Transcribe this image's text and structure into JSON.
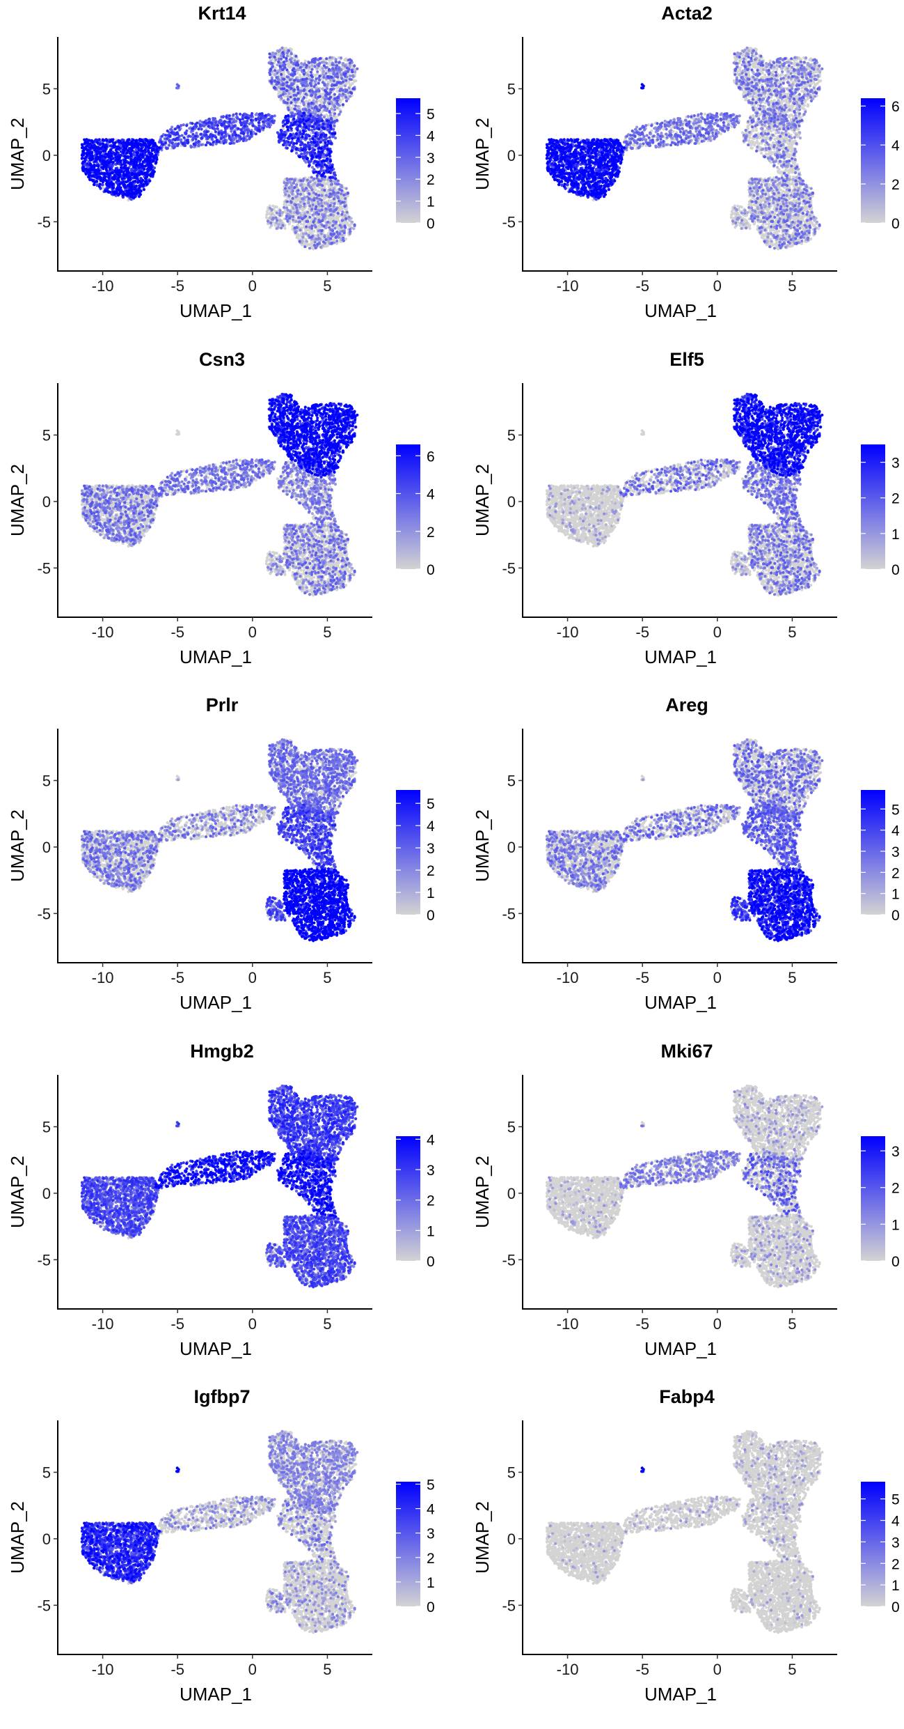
{
  "figure": {
    "layout": "5 rows x 2 columns of feature plots",
    "color_low": "#d3d3d3",
    "color_high": "#0000ff"
  },
  "chart_data": [
    {
      "type": "scatter",
      "title": "Krt14",
      "xlabel": "UMAP_1",
      "ylabel": "UMAP_2",
      "xlim": [
        -13,
        8
      ],
      "ylim": [
        -8.7,
        8.9
      ],
      "xticks": [
        -10,
        -5,
        0,
        5
      ],
      "yticks": [
        -5,
        0,
        5
      ],
      "legend": {
        "title": "",
        "placement": "right",
        "min": 0,
        "max": 5.7,
        "ticks": [
          0,
          1,
          2,
          3,
          4,
          5
        ]
      },
      "region_mean_expression": {
        "basal": 4.8,
        "bridge": 3.2,
        "luminal_top": 1.6,
        "stem": 3.8,
        "bottom": 1.2,
        "side_lobe": 0.8,
        "outlier": 2.5
      },
      "grid": false
    },
    {
      "type": "scatter",
      "title": "Acta2",
      "xlabel": "UMAP_1",
      "ylabel": "UMAP_2",
      "xlim": [
        -13,
        8
      ],
      "ylim": [
        -8.7,
        8.9
      ],
      "xticks": [
        -10,
        -5,
        0,
        5
      ],
      "yticks": [
        -5,
        0,
        5
      ],
      "legend": {
        "title": "",
        "placement": "right",
        "min": 0,
        "max": 6.4,
        "ticks": [
          0,
          2,
          4,
          6
        ]
      },
      "region_mean_expression": {
        "basal": 5.4,
        "bridge": 2.6,
        "luminal_top": 1.4,
        "stem": 1.3,
        "bottom": 1.3,
        "side_lobe": 0.7,
        "outlier": 6.0
      },
      "grid": false
    },
    {
      "type": "scatter",
      "title": "Csn3",
      "xlabel": "UMAP_1",
      "ylabel": "UMAP_2",
      "xlim": [
        -13,
        8
      ],
      "ylim": [
        -8.7,
        8.9
      ],
      "xticks": [
        -10,
        -5,
        0,
        5
      ],
      "yticks": [
        -5,
        0,
        5
      ],
      "legend": {
        "title": "",
        "placement": "right",
        "min": 0,
        "max": 6.6,
        "ticks": [
          0,
          2,
          4,
          6
        ]
      },
      "region_mean_expression": {
        "basal": 1.6,
        "bridge": 2.6,
        "luminal_top": 5.8,
        "stem": 2.4,
        "bottom": 1.5,
        "side_lobe": 1.0,
        "outlier": 0.3
      },
      "grid": false
    },
    {
      "type": "scatter",
      "title": "Elf5",
      "xlabel": "UMAP_1",
      "ylabel": "UMAP_2",
      "xlim": [
        -13,
        8
      ],
      "ylim": [
        -8.7,
        8.9
      ],
      "xticks": [
        -10,
        -5,
        0,
        5
      ],
      "yticks": [
        -5,
        0,
        5
      ],
      "legend": {
        "title": "",
        "placement": "right",
        "min": 0,
        "max": 3.5,
        "ticks": [
          0,
          1,
          2,
          3
        ]
      },
      "region_mean_expression": {
        "basal": 0.2,
        "bridge": 0.9,
        "luminal_top": 2.9,
        "stem": 1.4,
        "bottom": 0.8,
        "side_lobe": 0.4,
        "outlier": 0.2
      },
      "grid": false
    },
    {
      "type": "scatter",
      "title": "Prlr",
      "xlabel": "UMAP_1",
      "ylabel": "UMAP_2",
      "xlim": [
        -13,
        8
      ],
      "ylim": [
        -8.7,
        8.9
      ],
      "xticks": [
        -10,
        -5,
        0,
        5
      ],
      "yticks": [
        -5,
        0,
        5
      ],
      "legend": {
        "title": "",
        "placement": "right",
        "min": 0,
        "max": 5.6,
        "ticks": [
          0,
          1,
          2,
          3,
          4,
          5
        ]
      },
      "region_mean_expression": {
        "basal": 1.3,
        "bridge": 1.2,
        "luminal_top": 2.3,
        "stem": 3.2,
        "bottom": 5.2,
        "side_lobe": 3.0,
        "outlier": 0.8
      },
      "grid": false
    },
    {
      "type": "scatter",
      "title": "Areg",
      "xlabel": "UMAP_1",
      "ylabel": "UMAP_2",
      "xlim": [
        -13,
        8
      ],
      "ylim": [
        -8.7,
        8.9
      ],
      "xticks": [
        -10,
        -5,
        0,
        5
      ],
      "yticks": [
        -5,
        0,
        5
      ],
      "legend": {
        "title": "",
        "placement": "right",
        "min": 0,
        "max": 5.9,
        "ticks": [
          0,
          1,
          2,
          3,
          4,
          5
        ]
      },
      "region_mean_expression": {
        "basal": 1.3,
        "bridge": 1.5,
        "luminal_top": 1.5,
        "stem": 2.8,
        "bottom": 4.6,
        "side_lobe": 3.5,
        "outlier": 1.0
      },
      "grid": false
    },
    {
      "type": "scatter",
      "title": "Hmgb2",
      "xlabel": "UMAP_1",
      "ylabel": "UMAP_2",
      "xlim": [
        -13,
        8
      ],
      "ylim": [
        -8.7,
        8.9
      ],
      "xticks": [
        -10,
        -5,
        0,
        5
      ],
      "yticks": [
        -5,
        0,
        5
      ],
      "legend": {
        "title": "",
        "placement": "right",
        "min": 0,
        "max": 4.1,
        "ticks": [
          0,
          1,
          2,
          3,
          4
        ]
      },
      "region_mean_expression": {
        "basal": 2.2,
        "bridge": 3.3,
        "luminal_top": 2.4,
        "stem": 3.2,
        "bottom": 2.2,
        "side_lobe": 2.0,
        "outlier": 2.5
      },
      "grid": false
    },
    {
      "type": "scatter",
      "title": "Mki67",
      "xlabel": "UMAP_1",
      "ylabel": "UMAP_2",
      "xlim": [
        -13,
        8
      ],
      "ylim": [
        -8.7,
        8.9
      ],
      "xticks": [
        -10,
        -5,
        0,
        5
      ],
      "yticks": [
        -5,
        0,
        5
      ],
      "legend": {
        "title": "",
        "placement": "right",
        "min": 0,
        "max": 3.4,
        "ticks": [
          0,
          1,
          2,
          3
        ]
      },
      "region_mean_expression": {
        "basal": 0.15,
        "bridge": 1.2,
        "luminal_top": 0.25,
        "stem": 1.0,
        "bottom": 0.3,
        "side_lobe": 0.3,
        "outlier": 1.0
      },
      "grid": false
    },
    {
      "type": "scatter",
      "title": "Igfbp7",
      "xlabel": "UMAP_1",
      "ylabel": "UMAP_2",
      "xlim": [
        -13,
        8
      ],
      "ylim": [
        -8.7,
        8.9
      ],
      "xticks": [
        -10,
        -5,
        0,
        5
      ],
      "yticks": [
        -5,
        0,
        5
      ],
      "legend": {
        "title": "",
        "placement": "right",
        "min": 0,
        "max": 5.1,
        "ticks": [
          0,
          1,
          2,
          3,
          4,
          5
        ]
      },
      "region_mean_expression": {
        "basal": 3.4,
        "bridge": 0.8,
        "luminal_top": 1.6,
        "stem": 1.0,
        "bottom": 0.6,
        "side_lobe": 0.8,
        "outlier": 5.0
      },
      "grid": false
    },
    {
      "type": "scatter",
      "title": "Fabp4",
      "xlabel": "UMAP_1",
      "ylabel": "UMAP_2",
      "xlim": [
        -13,
        8
      ],
      "ylim": [
        -8.7,
        8.9
      ],
      "xticks": [
        -10,
        -5,
        0,
        5
      ],
      "yticks": [
        -5,
        0,
        5
      ],
      "legend": {
        "title": "",
        "placement": "right",
        "min": 0,
        "max": 5.8,
        "ticks": [
          0,
          1,
          2,
          3,
          4,
          5
        ]
      },
      "region_mean_expression": {
        "basal": 0.15,
        "bridge": 0.3,
        "luminal_top": 0.3,
        "stem": 0.4,
        "bottom": 0.2,
        "side_lobe": 0.2,
        "outlier": 5.5
      },
      "grid": false
    }
  ]
}
